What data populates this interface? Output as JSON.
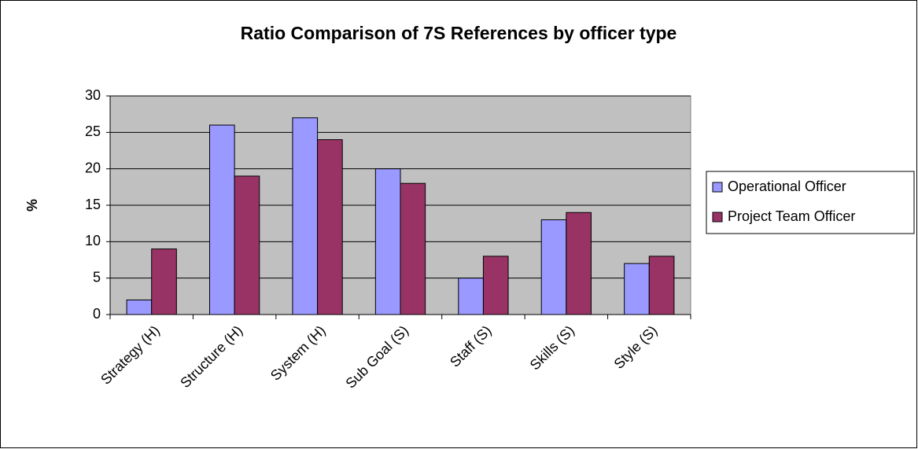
{
  "chart_data": {
    "type": "bar",
    "title": "Ratio Comparison of 7S References by officer type",
    "y_label": "%",
    "categories": [
      "Strategy (H)",
      "Structure (H)",
      "System (H)",
      "Sub Goal (S)",
      "Staff (S)",
      "Skills (S)",
      "Style (S)"
    ],
    "series": [
      {
        "name": "Operational Officer",
        "color": "#9999ff",
        "values": [
          2,
          26,
          27,
          20,
          5,
          13,
          7
        ]
      },
      {
        "name": "Project Team Officer",
        "color": "#993366",
        "values": [
          9,
          19,
          24,
          18,
          8,
          14,
          8
        ]
      }
    ],
    "ylim": [
      0,
      30
    ],
    "yticks": [
      0,
      5,
      10,
      15,
      20,
      25,
      30
    ],
    "grid": true,
    "legend": "right"
  }
}
